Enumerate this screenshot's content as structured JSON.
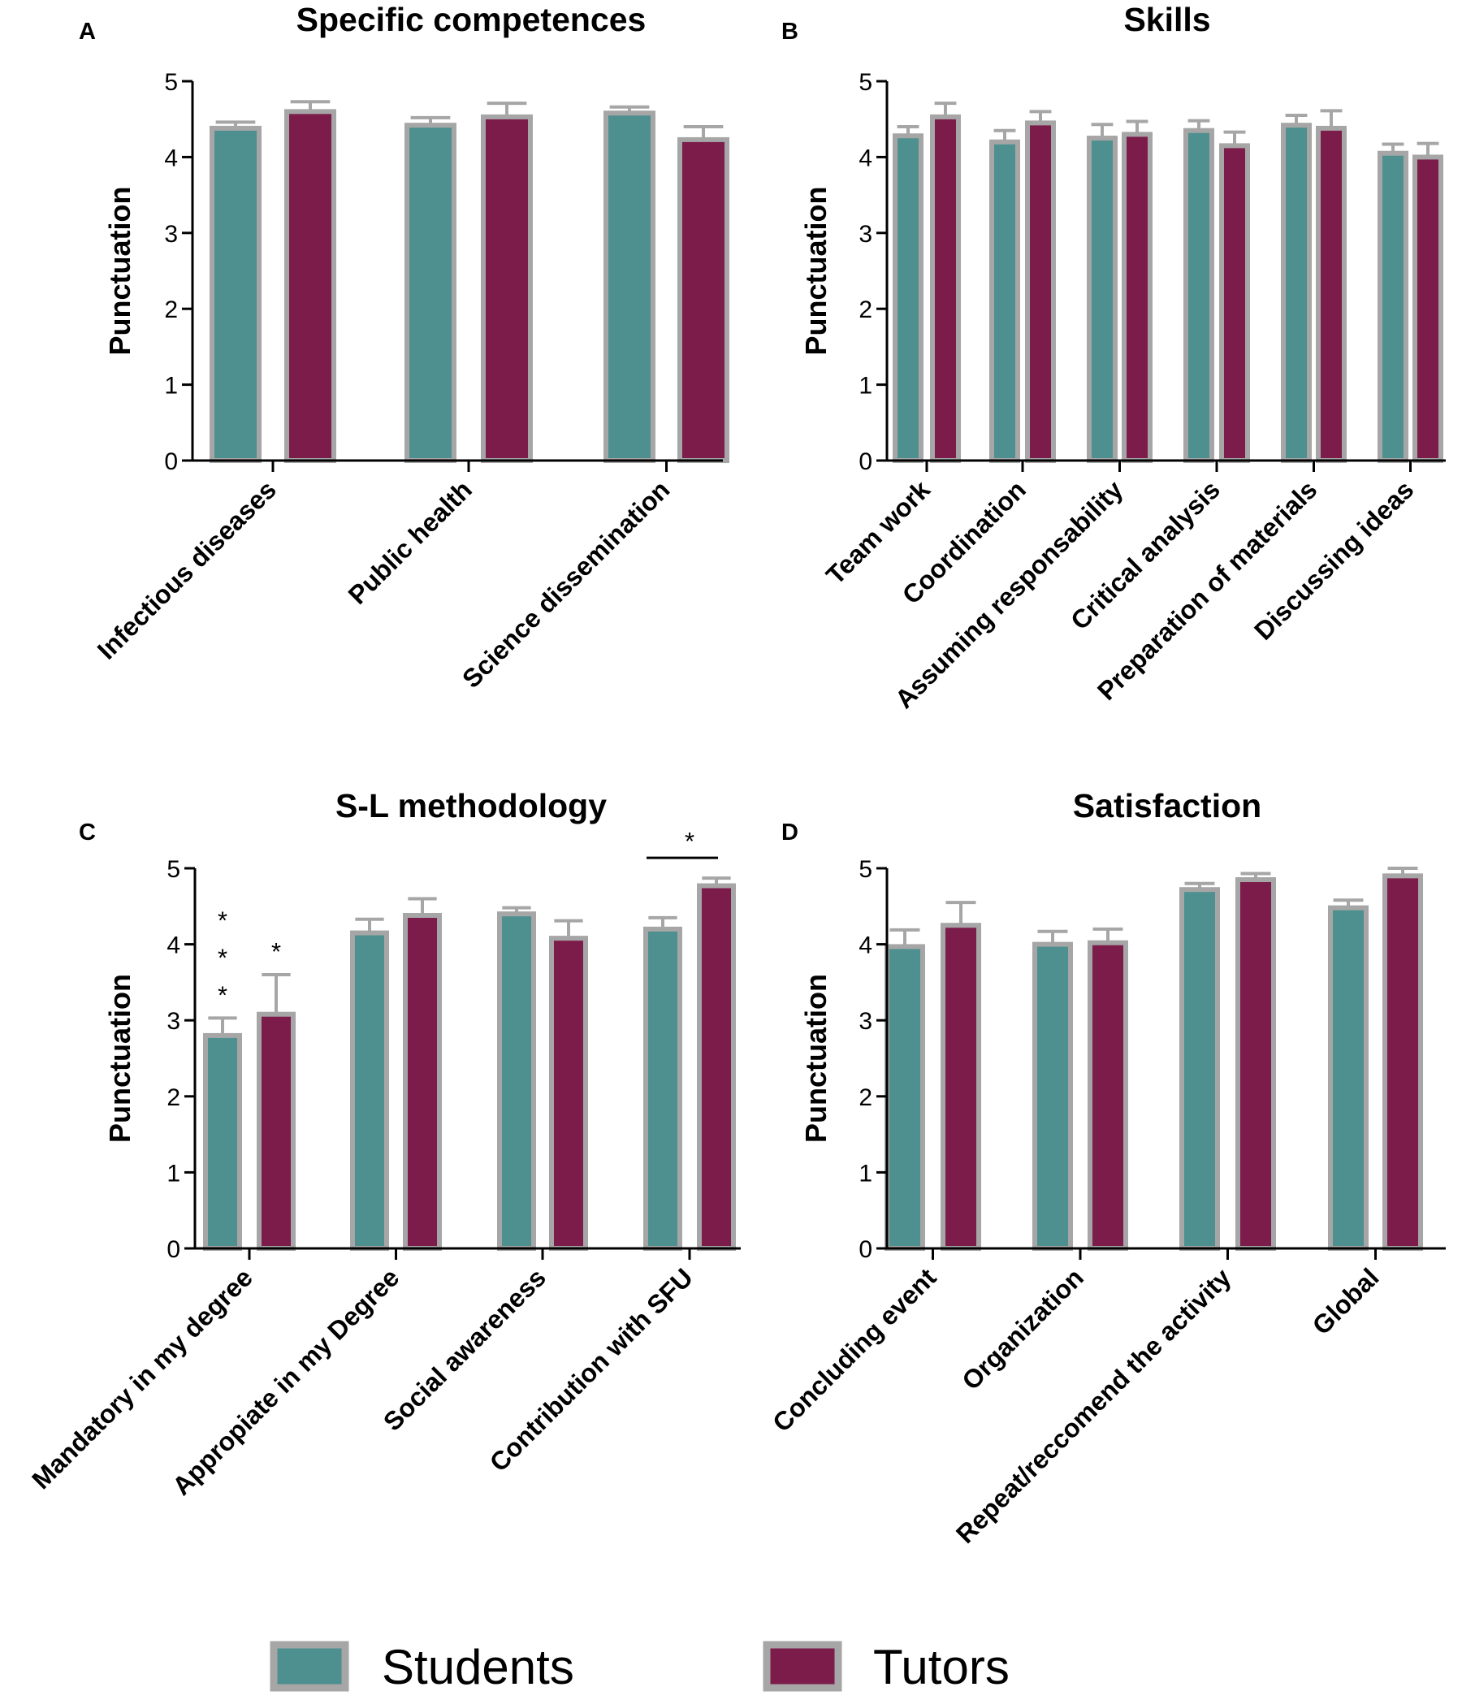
{
  "colors": {
    "students": "#4e8f8f",
    "tutors": "#7b1c4b",
    "bar_border": "#a6a6a6",
    "axis": "#000000"
  },
  "legend": {
    "students_label": "Students",
    "tutors_label": "Tutors"
  },
  "chart_data": [
    {
      "panel": "A",
      "type": "bar",
      "title": "Specific competences",
      "ylabel": "Punctuation",
      "xlabel": "",
      "ylim": [
        0,
        5
      ],
      "yticks": [
        "0",
        "1",
        "2",
        "3",
        "4",
        "5"
      ],
      "categories": [
        "Infectious diseases",
        "Public health",
        "Science dissemination"
      ],
      "series": [
        {
          "name": "Students",
          "values": [
            4.38,
            4.42,
            4.58
          ],
          "errors": [
            0.08,
            0.1,
            0.08
          ]
        },
        {
          "name": "Tutors",
          "values": [
            4.6,
            4.53,
            4.23
          ],
          "errors": [
            0.13,
            0.18,
            0.17
          ]
        }
      ],
      "annotations": []
    },
    {
      "panel": "B",
      "type": "bar",
      "title": "Skills",
      "ylabel": "Punctuation",
      "xlabel": "",
      "ylim": [
        0,
        5
      ],
      "yticks": [
        "0",
        "1",
        "2",
        "3",
        "4",
        "5"
      ],
      "categories": [
        "Team work",
        "Coordination",
        "Assuming responsability",
        "Critical analysis",
        "Preparation of materials",
        "Discussing ideas"
      ],
      "series": [
        {
          "name": "Students",
          "values": [
            4.28,
            4.2,
            4.25,
            4.35,
            4.42,
            4.05
          ],
          "errors": [
            0.12,
            0.15,
            0.18,
            0.13,
            0.13,
            0.12
          ]
        },
        {
          "name": "Tutors",
          "values": [
            4.53,
            4.45,
            4.3,
            4.15,
            4.38,
            4.0
          ],
          "errors": [
            0.18,
            0.15,
            0.17,
            0.18,
            0.23,
            0.18
          ]
        }
      ],
      "annotations": []
    },
    {
      "panel": "C",
      "type": "bar",
      "title": "S-L methodology",
      "ylabel": "Punctuation",
      "xlabel": "",
      "ylim": [
        0,
        5
      ],
      "yticks": [
        "0",
        "1",
        "2",
        "3",
        "4",
        "5"
      ],
      "categories": [
        "Mandatory in my degree",
        "Appropiate in my Degree",
        "Social awareness",
        "Contribution with SFU"
      ],
      "series": [
        {
          "name": "Students",
          "values": [
            2.8,
            4.15,
            4.4,
            4.2
          ],
          "errors": [
            0.23,
            0.18,
            0.08,
            0.15
          ]
        },
        {
          "name": "Tutors",
          "values": [
            3.08,
            4.38,
            4.08,
            4.77
          ],
          "errors": [
            0.52,
            0.22,
            0.23,
            0.1
          ]
        }
      ],
      "annotations": [
        {
          "text": "*",
          "category": 0,
          "series": 0,
          "stack": 3
        },
        {
          "text": "*",
          "category": 0,
          "series": 1,
          "stack": 1
        },
        {
          "text": "*",
          "category": 3,
          "series": null,
          "bracket": true
        }
      ]
    },
    {
      "panel": "D",
      "type": "bar",
      "title": "Satisfaction",
      "ylabel": "Punctuation",
      "xlabel": "",
      "ylim": [
        0,
        5
      ],
      "yticks": [
        "0",
        "1",
        "2",
        "3",
        "4",
        "5"
      ],
      "categories": [
        "Concluding event",
        "Organization",
        "Repeat/reccomend the activity",
        "Global"
      ],
      "series": [
        {
          "name": "Students",
          "values": [
            3.97,
            4.0,
            4.72,
            4.48
          ],
          "errors": [
            0.22,
            0.17,
            0.08,
            0.1
          ]
        },
        {
          "name": "Tutors",
          "values": [
            4.25,
            4.02,
            4.85,
            4.9
          ],
          "errors": [
            0.3,
            0.18,
            0.08,
            0.1
          ]
        }
      ],
      "annotations": []
    }
  ]
}
